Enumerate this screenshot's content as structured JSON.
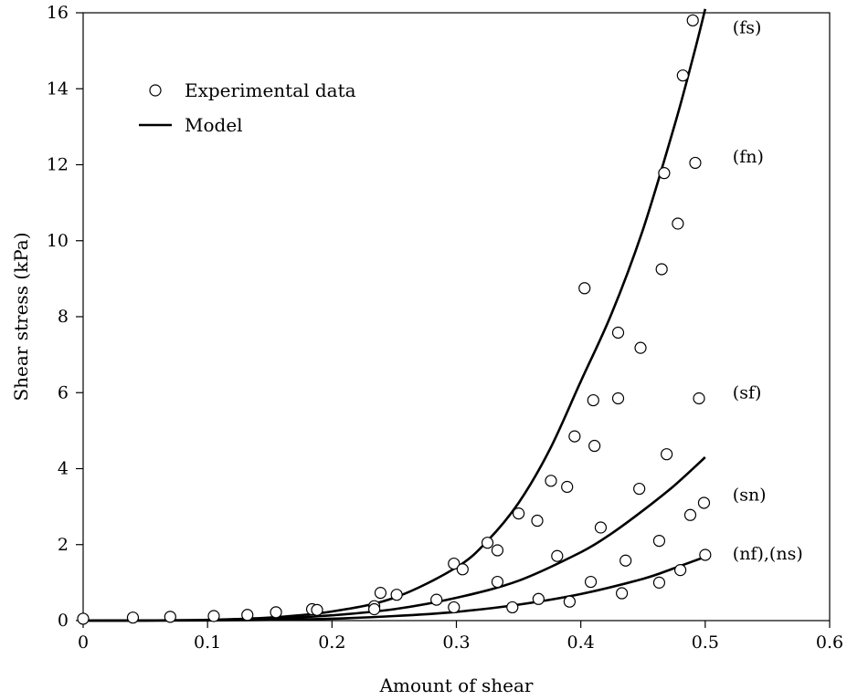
{
  "chart_data": {
    "type": "scatter",
    "title": "",
    "xlabel": "Amount of shear",
    "ylabel": "Shear stress (kPa)",
    "xlim": [
      0,
      0.6
    ],
    "ylim": [
      0,
      16
    ],
    "xticks": [
      0,
      0.1,
      0.2,
      0.3,
      0.4,
      0.5,
      0.6
    ],
    "xtick_labels": [
      "0",
      "0.1",
      "0.2",
      "0.3",
      "0.4",
      "0.5",
      "0.6"
    ],
    "yticks": [
      0,
      2,
      4,
      6,
      8,
      10,
      12,
      14,
      16
    ],
    "ytick_labels": [
      "0",
      "2",
      "4",
      "6",
      "8",
      "10",
      "12",
      "14",
      "16"
    ],
    "grid": false,
    "legend": {
      "placement": "top-left",
      "entries": [
        {
          "label": "Experimental data",
          "marker": "open-circle"
        },
        {
          "label": "Model",
          "marker": "line"
        }
      ]
    },
    "experimental_data": [
      {
        "x": 0.0,
        "y": 0.05
      },
      {
        "x": 0.04,
        "y": 0.08
      },
      {
        "x": 0.07,
        "y": 0.1
      },
      {
        "x": 0.105,
        "y": 0.12
      },
      {
        "x": 0.132,
        "y": 0.15
      },
      {
        "x": 0.155,
        "y": 0.22
      },
      {
        "x": 0.184,
        "y": 0.3
      },
      {
        "x": 0.188,
        "y": 0.28
      },
      {
        "x": 0.234,
        "y": 0.38
      },
      {
        "x": 0.234,
        "y": 0.3
      },
      {
        "x": 0.239,
        "y": 0.73
      },
      {
        "x": 0.252,
        "y": 0.68
      },
      {
        "x": 0.284,
        "y": 0.55
      },
      {
        "x": 0.298,
        "y": 1.5
      },
      {
        "x": 0.298,
        "y": 0.35
      },
      {
        "x": 0.305,
        "y": 1.35
      },
      {
        "x": 0.325,
        "y": 2.05
      },
      {
        "x": 0.333,
        "y": 1.85
      },
      {
        "x": 0.333,
        "y": 1.02
      },
      {
        "x": 0.345,
        "y": 0.35
      },
      {
        "x": 0.35,
        "y": 2.82
      },
      {
        "x": 0.365,
        "y": 2.63
      },
      {
        "x": 0.366,
        "y": 0.57
      },
      {
        "x": 0.376,
        "y": 3.68
      },
      {
        "x": 0.381,
        "y": 1.7
      },
      {
        "x": 0.389,
        "y": 3.52
      },
      {
        "x": 0.391,
        "y": 0.5
      },
      {
        "x": 0.395,
        "y": 4.85
      },
      {
        "x": 0.403,
        "y": 8.75
      },
      {
        "x": 0.408,
        "y": 1.02
      },
      {
        "x": 0.41,
        "y": 5.8
      },
      {
        "x": 0.411,
        "y": 4.6
      },
      {
        "x": 0.416,
        "y": 2.45
      },
      {
        "x": 0.43,
        "y": 7.58
      },
      {
        "x": 0.43,
        "y": 5.85
      },
      {
        "x": 0.433,
        "y": 0.72
      },
      {
        "x": 0.436,
        "y": 1.58
      },
      {
        "x": 0.447,
        "y": 3.47
      },
      {
        "x": 0.448,
        "y": 7.18
      },
      {
        "x": 0.463,
        "y": 2.1
      },
      {
        "x": 0.463,
        "y": 1.0
      },
      {
        "x": 0.465,
        "y": 9.25
      },
      {
        "x": 0.467,
        "y": 11.78
      },
      {
        "x": 0.469,
        "y": 4.38
      },
      {
        "x": 0.478,
        "y": 10.45
      },
      {
        "x": 0.48,
        "y": 1.33
      },
      {
        "x": 0.482,
        "y": 14.35
      },
      {
        "x": 0.488,
        "y": 2.78
      },
      {
        "x": 0.49,
        "y": 15.8
      },
      {
        "x": 0.492,
        "y": 12.05
      },
      {
        "x": 0.495,
        "y": 5.85
      },
      {
        "x": 0.499,
        "y": 3.1
      },
      {
        "x": 0.5,
        "y": 1.73
      }
    ],
    "model_curves": [
      {
        "label": "(fs)",
        "x": [
          0,
          0.05,
          0.1,
          0.15,
          0.2,
          0.25,
          0.3,
          0.325,
          0.35,
          0.375,
          0.4,
          0.425,
          0.45,
          0.475,
          0.49,
          0.5
        ],
        "y": [
          0,
          0.005,
          0.02,
          0.08,
          0.24,
          0.6,
          1.4,
          2.1,
          3.1,
          4.5,
          6.3,
          8.1,
          10.3,
          13.0,
          14.8,
          16.1
        ]
      },
      {
        "label": "(sn)",
        "x": [
          0,
          0.05,
          0.1,
          0.15,
          0.2,
          0.25,
          0.3,
          0.35,
          0.4,
          0.425,
          0.45,
          0.475,
          0.5
        ],
        "y": [
          0,
          0.003,
          0.012,
          0.05,
          0.14,
          0.3,
          0.6,
          1.05,
          1.8,
          2.3,
          2.9,
          3.55,
          4.3
        ]
      },
      {
        "label": "(nf),(ns)",
        "x": [
          0,
          0.1,
          0.15,
          0.2,
          0.25,
          0.3,
          0.35,
          0.4,
          0.45,
          0.475,
          0.5
        ],
        "y": [
          0,
          0.005,
          0.02,
          0.05,
          0.12,
          0.23,
          0.42,
          0.7,
          1.1,
          1.38,
          1.68
        ]
      }
    ],
    "annotations": [
      {
        "text": "(fs)",
        "x": 0.522,
        "y": 15.6
      },
      {
        "text": "(fn)",
        "x": 0.522,
        "y": 12.2
      },
      {
        "text": "(sf)",
        "x": 0.522,
        "y": 6.0
      },
      {
        "text": "(sn)",
        "x": 0.522,
        "y": 3.3
      },
      {
        "text": "(nf),(ns)",
        "x": 0.522,
        "y": 1.75
      }
    ]
  }
}
